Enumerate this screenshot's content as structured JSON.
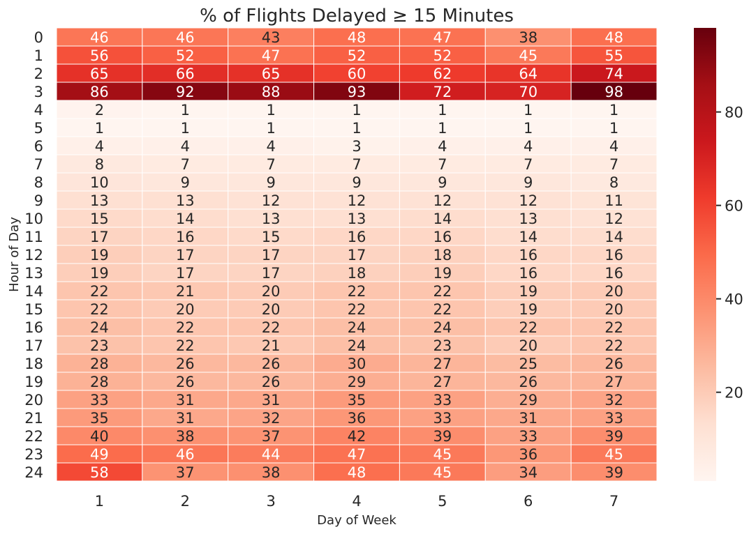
{
  "chart_data": {
    "type": "heatmap",
    "title": "% of Flights Delayed ≥ 15 Minutes",
    "xlabel": "Day of Week",
    "ylabel": "Hour of Day",
    "x_categories": [
      "1",
      "2",
      "3",
      "4",
      "5",
      "6",
      "7"
    ],
    "y_categories": [
      "0",
      "1",
      "2",
      "3",
      "4",
      "5",
      "6",
      "7",
      "8",
      "9",
      "10",
      "11",
      "12",
      "13",
      "14",
      "15",
      "16",
      "17",
      "18",
      "19",
      "20",
      "21",
      "22",
      "23",
      "24"
    ],
    "values": [
      [
        46,
        46,
        43,
        48,
        47,
        38,
        48
      ],
      [
        56,
        52,
        47,
        52,
        52,
        45,
        55
      ],
      [
        65,
        66,
        65,
        60,
        62,
        64,
        74
      ],
      [
        86,
        92,
        88,
        93,
        72,
        70,
        98
      ],
      [
        2,
        1,
        1,
        1,
        1,
        1,
        1
      ],
      [
        1,
        1,
        1,
        1,
        1,
        1,
        1
      ],
      [
        4,
        4,
        4,
        3,
        4,
        4,
        4
      ],
      [
        8,
        7,
        7,
        7,
        7,
        7,
        7
      ],
      [
        10,
        9,
        9,
        9,
        9,
        9,
        8
      ],
      [
        13,
        13,
        12,
        12,
        12,
        12,
        11
      ],
      [
        15,
        14,
        13,
        13,
        14,
        13,
        12
      ],
      [
        17,
        16,
        15,
        16,
        16,
        14,
        14
      ],
      [
        19,
        17,
        17,
        17,
        18,
        16,
        16
      ],
      [
        19,
        17,
        17,
        18,
        19,
        16,
        16
      ],
      [
        22,
        21,
        20,
        22,
        22,
        19,
        20
      ],
      [
        22,
        20,
        20,
        22,
        22,
        19,
        20
      ],
      [
        24,
        22,
        22,
        24,
        24,
        22,
        22
      ],
      [
        23,
        22,
        21,
        24,
        23,
        20,
        22
      ],
      [
        28,
        26,
        26,
        30,
        27,
        25,
        26
      ],
      [
        28,
        26,
        26,
        29,
        27,
        26,
        27
      ],
      [
        33,
        31,
        31,
        35,
        33,
        29,
        32
      ],
      [
        35,
        31,
        32,
        36,
        33,
        31,
        33
      ],
      [
        40,
        38,
        37,
        42,
        39,
        33,
        39
      ],
      [
        49,
        46,
        44,
        47,
        45,
        36,
        45
      ],
      [
        58,
        37,
        38,
        48,
        45,
        34,
        39
      ]
    ],
    "colormap": "Reds",
    "color_range": [
      1,
      98
    ],
    "colorbar_ticks": [
      20,
      40,
      60,
      80
    ],
    "cell_text_color_dark": "#262626",
    "cell_text_color_light": "#ffffff",
    "grid_line_color": "#ffffff"
  }
}
